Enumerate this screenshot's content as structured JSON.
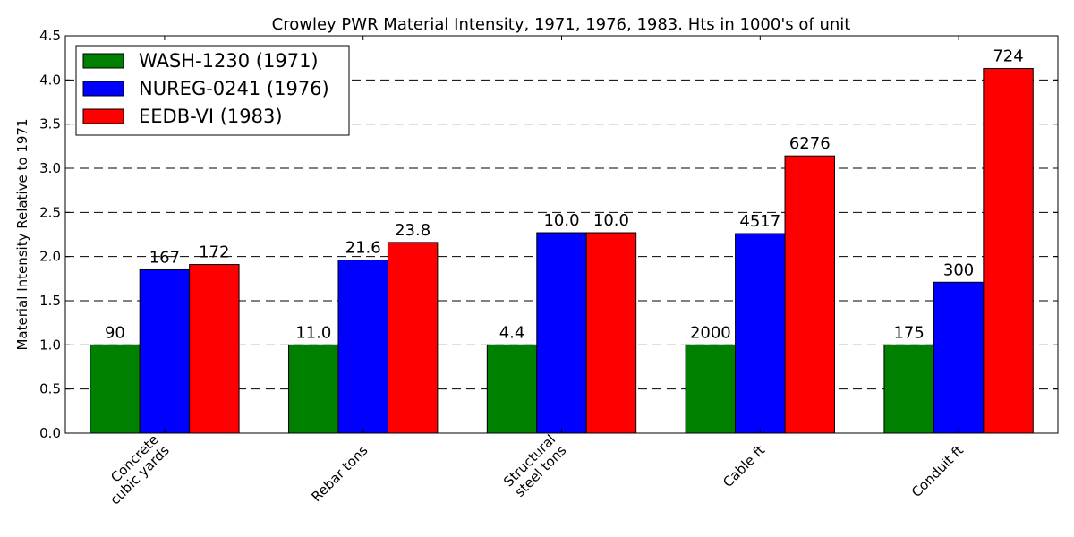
{
  "chart_data": {
    "type": "bar",
    "title": "Crowley PWR Material Intensity, 1971, 1976, 1983. Hts in 1000's of unit",
    "ylabel": "Material Intensity Relative to 1971",
    "xlabel": "",
    "ylim": [
      0,
      4.5
    ],
    "yticks": [
      "0.0",
      "0.5",
      "1.0",
      "1.5",
      "2.0",
      "2.5",
      "3.0",
      "3.5",
      "4.0",
      "4.5"
    ],
    "grid": true,
    "legend_position": "top-left",
    "categories": [
      [
        "Concrete",
        "cubic yards"
      ],
      [
        "Rebar tons"
      ],
      [
        "Structural",
        "steel tons"
      ],
      [
        "Cable ft"
      ],
      [
        "Conduit ft"
      ]
    ],
    "series": [
      {
        "name": "WASH-1230 (1971)",
        "color": "#008000",
        "values": [
          1.0,
          1.0,
          1.0,
          1.0,
          1.0
        ],
        "labels": [
          "90",
          "11.0",
          "4.4",
          "2000",
          "175"
        ]
      },
      {
        "name": "NUREG-0241 (1976)",
        "color": "#0000ff",
        "values": [
          1.85,
          1.96,
          2.27,
          2.26,
          1.71
        ],
        "labels": [
          "167",
          "21.6",
          "10.0",
          "4517",
          "300"
        ]
      },
      {
        "name": "EEDB-VI (1983)",
        "color": "#ff0000",
        "values": [
          1.91,
          2.16,
          2.27,
          3.14,
          4.13
        ],
        "labels": [
          "172",
          "23.8",
          "10.0",
          "6276",
          "724"
        ]
      }
    ]
  }
}
